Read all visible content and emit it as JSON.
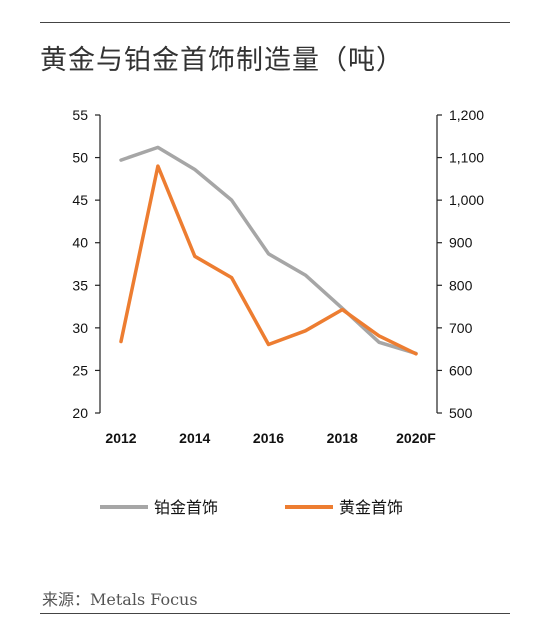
{
  "header": {
    "title": "黄金与铂金首饰制造量（吨）"
  },
  "footer": {
    "source": "来源：Metals Focus"
  },
  "chart_data": {
    "type": "line",
    "x": [
      2012,
      2013,
      2014,
      2015,
      2016,
      2017,
      2018,
      2019,
      2020
    ],
    "x_tick_labels": [
      "2012",
      "2014",
      "2016",
      "2018",
      "2020F"
    ],
    "x_tick_positions": [
      2012,
      2014,
      2016,
      2018,
      2020
    ],
    "series": [
      {
        "name": "铂金首饰",
        "axis": "left",
        "color": "#a6a6a6",
        "values": [
          49.7,
          51.2,
          48.6,
          45.0,
          38.7,
          36.2,
          32.3,
          28.3,
          27.0
        ]
      },
      {
        "name": "黄金首饰",
        "axis": "right",
        "color": "#ed7d31",
        "values": [
          668,
          1080,
          868,
          818,
          661,
          693,
          743,
          681,
          639
        ]
      }
    ],
    "y_left": {
      "min": 20,
      "max": 55,
      "ticks": [
        "20",
        "25",
        "30",
        "35",
        "40",
        "45",
        "50",
        "55"
      ]
    },
    "y_right": {
      "min": 500,
      "max": 1200,
      "ticks": [
        "500",
        "600",
        "700",
        "800",
        "900",
        "1,000",
        "1,100",
        "1,200"
      ]
    },
    "legend_position": "bottom",
    "grid": false
  }
}
